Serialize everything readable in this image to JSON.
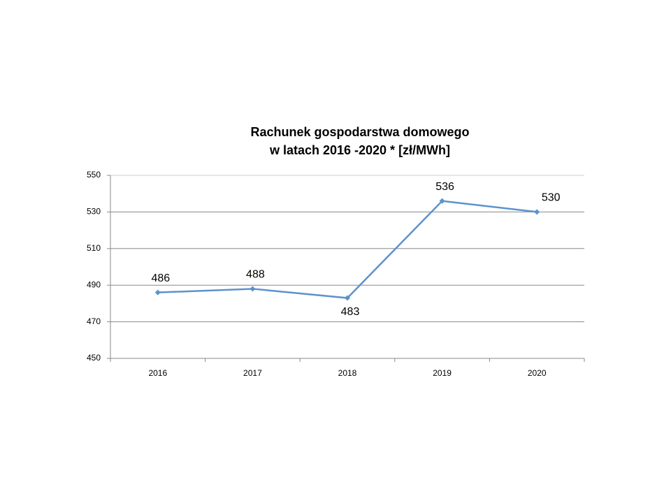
{
  "chart_data": {
    "type": "line",
    "title": [
      "Rachunek gospodarstwa domowego",
      "w latach 2016 -2020 * [zł/MWh]"
    ],
    "categories": [
      "2016",
      "2017",
      "2018",
      "2019",
      "2020"
    ],
    "values": [
      486,
      488,
      483,
      536,
      530
    ],
    "color": "#5b93cc",
    "ylim": [
      450,
      550
    ],
    "yticks": [
      450,
      470,
      490,
      510,
      530,
      550
    ],
    "grid": true
  }
}
